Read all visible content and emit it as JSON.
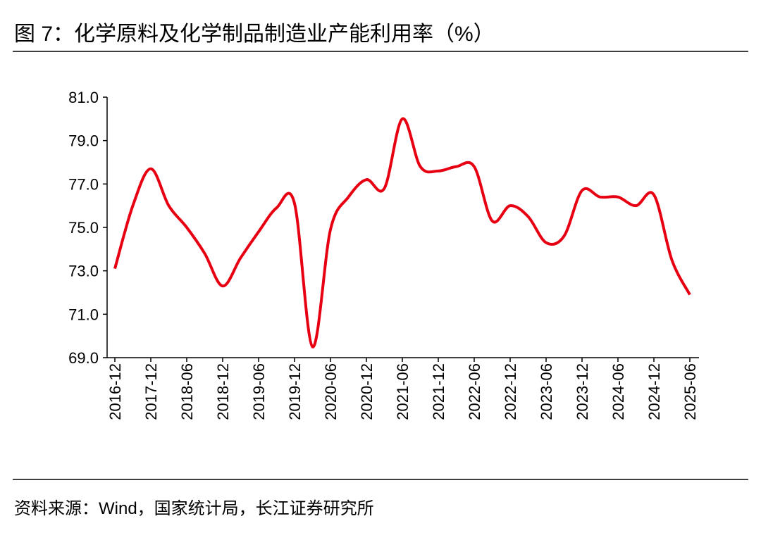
{
  "chart_data": {
    "type": "line",
    "title": "图 7：化学原料及化学制品制造业产能利用率（%）",
    "source": "资料来源：Wind，国家统计局，长江证券研究所",
    "categories": [
      "2016-12",
      null,
      "2017-12",
      null,
      "2018-06",
      null,
      "2018-12",
      null,
      "2019-06",
      null,
      "2019-12",
      null,
      "2020-06",
      null,
      "2020-12",
      null,
      "2021-06",
      null,
      "2021-12",
      null,
      "2022-06",
      null,
      "2022-12",
      null,
      "2023-06",
      null,
      "2023-12",
      null,
      "2024-06",
      null,
      "2024-12",
      null,
      "2025-06"
    ],
    "series": [
      {
        "name": "产能利用率",
        "color": "#e60012",
        "values": [
          73.1,
          76.0,
          77.7,
          76.0,
          75.0,
          73.8,
          72.3,
          73.6,
          74.8,
          75.9,
          76.1,
          69.5,
          74.9,
          76.4,
          77.2,
          76.8,
          80.0,
          77.8,
          77.6,
          77.8,
          77.8,
          75.3,
          76.0,
          75.5,
          74.3,
          74.6,
          76.7,
          76.4,
          76.4,
          76.0,
          76.5,
          73.5,
          71.9
        ]
      }
    ],
    "ylim": [
      69,
      81
    ],
    "yticks": [
      {
        "value": 69,
        "label": "69.0"
      },
      {
        "value": 71,
        "label": "71.0"
      },
      {
        "value": 73,
        "label": "73.0"
      },
      {
        "value": 75,
        "label": "75.0"
      },
      {
        "value": 77,
        "label": "77.0"
      },
      {
        "value": 79,
        "label": "79.0"
      },
      {
        "value": 81,
        "label": "81.0"
      }
    ]
  }
}
